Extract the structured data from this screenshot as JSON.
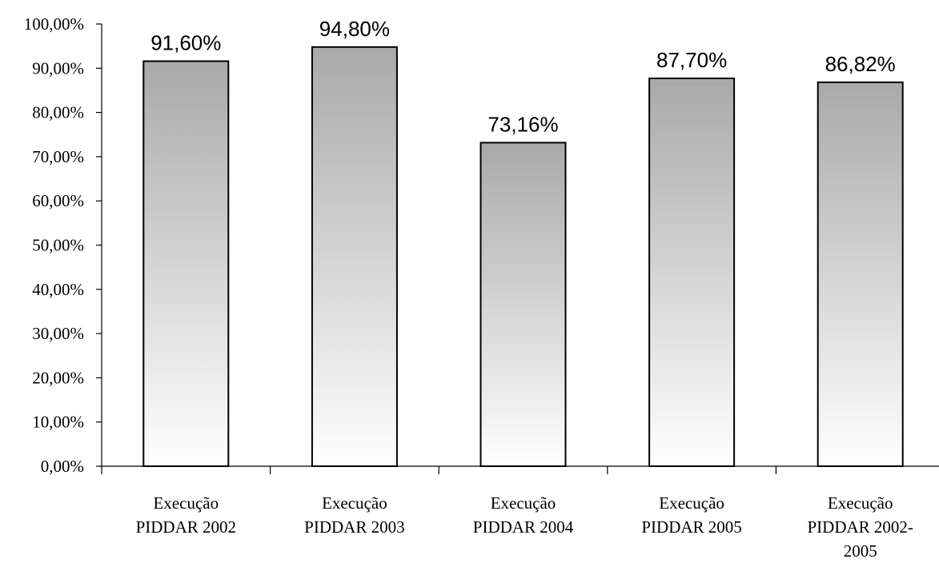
{
  "chart_data": {
    "type": "bar",
    "categories": [
      [
        "Execução",
        "PIDDAR 2002"
      ],
      [
        "Execução",
        "PIDDAR 2003"
      ],
      [
        "Execução",
        "PIDDAR 2004"
      ],
      [
        "Execução",
        "PIDDAR 2005"
      ],
      [
        "Execução",
        "PIDDAR 2002-",
        "2005"
      ]
    ],
    "values": [
      91.6,
      94.8,
      73.16,
      87.7,
      86.82
    ],
    "data_labels": [
      "91,60%",
      "94,80%",
      "73,16%",
      "87,70%",
      "86,82%"
    ],
    "ylim": [
      0,
      100
    ],
    "y_ticks": [
      0,
      10,
      20,
      30,
      40,
      50,
      60,
      70,
      80,
      90,
      100
    ],
    "y_tick_labels": [
      "0,00%",
      "10,00%",
      "20,00%",
      "30,00%",
      "40,00%",
      "50,00%",
      "60,00%",
      "70,00%",
      "80,00%",
      "90,00%",
      "100,00%"
    ],
    "grid": false,
    "legend": "none",
    "colors": {
      "bar_top": "#a9a9a9",
      "bar_bottom": "#ffffff",
      "stroke": "#000000"
    }
  }
}
